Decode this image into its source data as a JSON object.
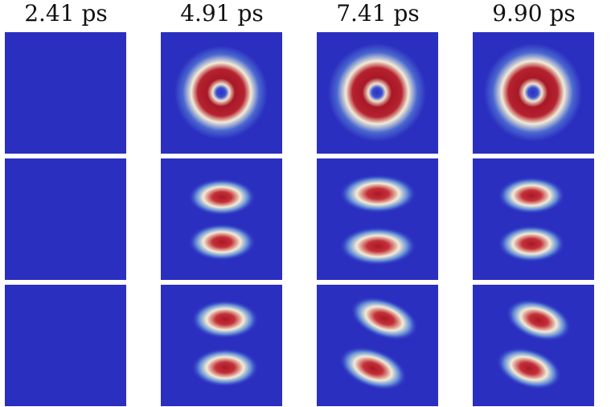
{
  "timestamps": [
    "2.41 ps",
    "4.91 ps",
    "7.41 ps",
    "9.90 ps"
  ],
  "colors": {
    "background": "#2b2fc0",
    "low": "#4050c8",
    "mid": "#f2ecd6",
    "high": "#a81826",
    "frame": "#ffffff"
  }
}
